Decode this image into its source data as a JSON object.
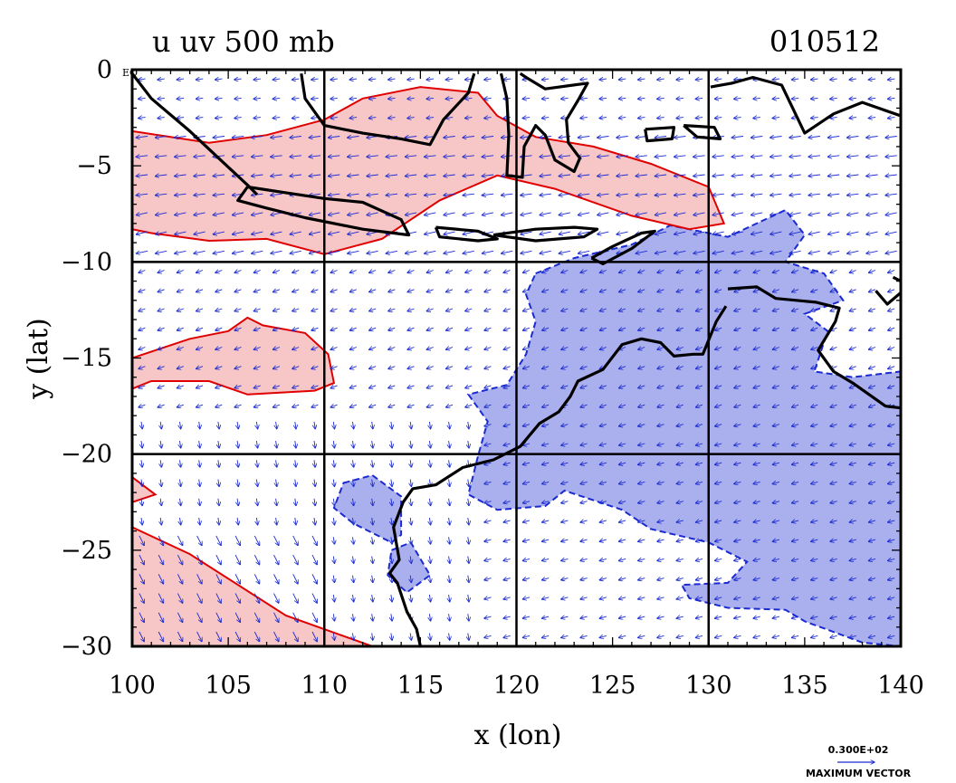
{
  "title": {
    "left": "u uv 500 mb",
    "right": "010512"
  },
  "axes": {
    "x": {
      "label": "x (lon)",
      "range": [
        100,
        140
      ],
      "ticks": [
        "100",
        "105",
        "110",
        "115",
        "120",
        "125",
        "130",
        "135",
        "140"
      ]
    },
    "y": {
      "label": "y (lat)",
      "range": [
        -30,
        0
      ],
      "ticks": [
        "-30",
        "-25",
        "-20",
        "-15",
        "-10",
        "-5",
        "0"
      ],
      "eq_label": "EQ"
    },
    "grid_lon": [
      110,
      120,
      130
    ],
    "grid_lat": [
      -10,
      -20
    ]
  },
  "legend": {
    "vector_value": "0.300E+02",
    "vector_label": "MAXIMUM VECTOR"
  },
  "colors": {
    "positive_fill": "#f7c6c6",
    "positive_line": "#e00000",
    "negative_fill": "#aab0ee",
    "negative_line": "#1a2ad0",
    "coast": "#000000",
    "vectors": "#1a2ad0"
  },
  "chart_data": {
    "type": "contour-vector-map",
    "title": "u uv 500 mb",
    "date": "010512",
    "xlabel": "x (lon)",
    "ylabel": "y (lat)",
    "xlim": [
      100,
      140
    ],
    "ylim": [
      -30,
      0
    ],
    "positive_regions_lonlat": [
      [
        [
          100,
          -3.2
        ],
        [
          104,
          -3.8
        ],
        [
          107,
          -3.4
        ],
        [
          110,
          -2.6
        ],
        [
          112,
          -1.5
        ],
        [
          115,
          -0.9
        ],
        [
          118,
          -1.2
        ],
        [
          119,
          -2.4
        ],
        [
          121,
          -3.5
        ],
        [
          124,
          -4.0
        ],
        [
          127,
          -4.9
        ],
        [
          130,
          -6.1
        ],
        [
          130.8,
          -8.0
        ],
        [
          129,
          -8.3
        ],
        [
          126,
          -7.6
        ],
        [
          122,
          -6.2
        ],
        [
          119,
          -5.5
        ],
        [
          116,
          -6.8
        ],
        [
          113,
          -8.8
        ],
        [
          110,
          -9.6
        ],
        [
          107,
          -8.8
        ],
        [
          104,
          -8.9
        ],
        [
          101,
          -8.5
        ],
        [
          100,
          -8.3
        ]
      ],
      [
        [
          100,
          -15.0
        ],
        [
          103,
          -14.0
        ],
        [
          105,
          -13.6
        ],
        [
          106,
          -12.9
        ],
        [
          106.8,
          -13.3
        ],
        [
          109,
          -13.7
        ],
        [
          110.2,
          -14.8
        ],
        [
          110.5,
          -16.3
        ],
        [
          109.5,
          -16.7
        ],
        [
          106,
          -16.9
        ],
        [
          104,
          -16.2
        ],
        [
          101,
          -16.2
        ],
        [
          100,
          -16.6
        ]
      ],
      [
        [
          100,
          -23.8
        ],
        [
          103,
          -25.2
        ],
        [
          108,
          -28.4
        ],
        [
          112.5,
          -30
        ],
        [
          100,
          -30
        ]
      ],
      [
        [
          100,
          -21.2
        ],
        [
          101.2,
          -22.1
        ],
        [
          100,
          -22.5
        ]
      ]
    ],
    "negative_regions_lonlat": [
      [
        [
          121,
          -10.6
        ],
        [
          123,
          -9.8
        ],
        [
          126,
          -9.1
        ],
        [
          128,
          -8.1
        ],
        [
          131,
          -8.7
        ],
        [
          134,
          -7.3
        ],
        [
          135,
          -8.6
        ],
        [
          134,
          -10.0
        ],
        [
          136,
          -10.6
        ],
        [
          137,
          -12.0
        ],
        [
          135,
          -12.7
        ],
        [
          136.2,
          -13.6
        ],
        [
          135.5,
          -15.7
        ],
        [
          137.5,
          -16.0
        ],
        [
          140,
          -15.7
        ],
        [
          140,
          -30
        ],
        [
          138,
          -29.8
        ],
        [
          135,
          -28.7
        ],
        [
          134,
          -28.1
        ],
        [
          131,
          -28.0
        ],
        [
          129,
          -27.5
        ],
        [
          128.6,
          -26.8
        ],
        [
          131,
          -26.7
        ],
        [
          132,
          -25.6
        ],
        [
          130,
          -24.6
        ],
        [
          127,
          -23.9
        ],
        [
          125.5,
          -22.9
        ],
        [
          122.5,
          -21.9
        ],
        [
          121.5,
          -22.7
        ],
        [
          119,
          -22.9
        ],
        [
          117.5,
          -22.1
        ],
        [
          118,
          -20.1
        ],
        [
          118.5,
          -18.3
        ],
        [
          117.5,
          -16.9
        ],
        [
          119.5,
          -16.4
        ],
        [
          120.5,
          -14.8
        ],
        [
          121,
          -13.1
        ],
        [
          120.5,
          -11.7
        ]
      ],
      [
        [
          111,
          -21.5
        ],
        [
          112.5,
          -21.1
        ],
        [
          114,
          -22.2
        ],
        [
          114,
          -24.2
        ],
        [
          113.5,
          -24.6
        ],
        [
          111.5,
          -23.6
        ],
        [
          110.5,
          -22.8
        ]
      ],
      [
        [
          113.5,
          -25.0
        ],
        [
          114.5,
          -24.6
        ],
        [
          115.5,
          -26.3
        ],
        [
          114.3,
          -27.2
        ],
        [
          113.3,
          -26.3
        ]
      ]
    ],
    "coastlines_lonlat": [
      [
        [
          100,
          -0.2
        ],
        [
          101,
          -1.5
        ],
        [
          103,
          -3.2
        ],
        [
          104.5,
          -4.6
        ],
        [
          106,
          -6.0
        ],
        [
          106.5,
          -6.5
        ]
      ],
      [
        [
          106,
          -6.1
        ],
        [
          108,
          -6.4
        ],
        [
          110,
          -6.7
        ],
        [
          112,
          -6.9
        ],
        [
          114,
          -7.8
        ],
        [
          114.4,
          -8.6
        ],
        [
          112,
          -8.3
        ],
        [
          109,
          -7.7
        ],
        [
          107,
          -7.2
        ],
        [
          105.5,
          -6.8
        ],
        [
          106,
          -6.1
        ]
      ],
      [
        [
          108.8,
          -0.2
        ],
        [
          109,
          -1.5
        ],
        [
          110,
          -2.9
        ],
        [
          112,
          -3.3
        ],
        [
          114,
          -3.6
        ],
        [
          115.5,
          -3.9
        ],
        [
          116.2,
          -2.6
        ],
        [
          117.5,
          -1.2
        ],
        [
          117.8,
          -0.2
        ]
      ],
      [
        [
          119.2,
          -0.2
        ],
        [
          119.5,
          -1.5
        ],
        [
          119.6,
          -3.4
        ],
        [
          119.5,
          -5.5
        ],
        [
          120.3,
          -5.6
        ],
        [
          120.4,
          -4.0
        ],
        [
          121,
          -2.9
        ],
        [
          121.5,
          -3.4
        ],
        [
          122,
          -4.7
        ],
        [
          123,
          -5.3
        ],
        [
          123.3,
          -4.6
        ],
        [
          122.7,
          -3.8
        ],
        [
          122.6,
          -2.6
        ],
        [
          123.2,
          -1.6
        ],
        [
          123.7,
          -0.7
        ],
        [
          121.5,
          -1.0
        ],
        [
          120.5,
          -0.4
        ],
        [
          120.2,
          -0.2
        ]
      ],
      [
        [
          126.7,
          -3.1
        ],
        [
          128.2,
          -3.0
        ],
        [
          128.1,
          -3.6
        ],
        [
          126.8,
          -3.7
        ],
        [
          126.7,
          -3.1
        ]
      ],
      [
        [
          128.7,
          -2.9
        ],
        [
          130.3,
          -3.0
        ],
        [
          130.6,
          -3.6
        ],
        [
          129.4,
          -3.5
        ],
        [
          128.7,
          -2.9
        ]
      ],
      [
        [
          115.8,
          -8.2
        ],
        [
          118,
          -8.4
        ],
        [
          119,
          -8.8
        ],
        [
          118,
          -8.9
        ],
        [
          116,
          -8.7
        ],
        [
          115.8,
          -8.2
        ]
      ],
      [
        [
          118.8,
          -8.6
        ],
        [
          121,
          -8.3
        ],
        [
          123,
          -8.2
        ],
        [
          124.2,
          -8.3
        ],
        [
          123.5,
          -8.7
        ],
        [
          121,
          -8.9
        ],
        [
          118.8,
          -8.6
        ]
      ],
      [
        [
          123.9,
          -9.8
        ],
        [
          125,
          -9.2
        ],
        [
          126.5,
          -8.5
        ],
        [
          127.2,
          -8.4
        ],
        [
          126,
          -9.3
        ],
        [
          124.5,
          -10.1
        ],
        [
          123.9,
          -9.8
        ]
      ],
      [
        [
          130.1,
          -0.9
        ],
        [
          131.2,
          -0.7
        ],
        [
          132.3,
          -0.4
        ],
        [
          133.8,
          -0.8
        ],
        [
          135,
          -3.3
        ],
        [
          136.5,
          -2.3
        ],
        [
          138,
          -1.7
        ],
        [
          140,
          -2.4
        ]
      ],
      [
        [
          131,
          -11.4
        ],
        [
          132.5,
          -11.3
        ],
        [
          133.5,
          -11.9
        ],
        [
          135.6,
          -12.1
        ],
        [
          136.8,
          -12.4
        ],
        [
          136.6,
          -13.1
        ],
        [
          135.7,
          -14.6
        ],
        [
          136.5,
          -15.7
        ],
        [
          137.5,
          -16.3
        ],
        [
          139.2,
          -17.5
        ],
        [
          140,
          -17.6
        ]
      ],
      [
        [
          140,
          -11.6
        ],
        [
          139.3,
          -12.2
        ],
        [
          138.7,
          -11.5
        ]
      ],
      [
        [
          139.6,
          -10.8
        ],
        [
          140,
          -11.0
        ]
      ],
      [
        [
          130.9,
          -12.3
        ],
        [
          130.4,
          -13.1
        ],
        [
          129.7,
          -14.8
        ],
        [
          129.2,
          -14.8
        ],
        [
          128.2,
          -14.9
        ],
        [
          127.5,
          -14.2
        ],
        [
          126.5,
          -14.0
        ],
        [
          125.5,
          -14.3
        ],
        [
          124.5,
          -15.6
        ],
        [
          123.2,
          -16.2
        ],
        [
          122.8,
          -17.0
        ],
        [
          122.2,
          -17.8
        ],
        [
          121.2,
          -18.4
        ],
        [
          120.2,
          -19.6
        ],
        [
          118.8,
          -20.3
        ],
        [
          117.2,
          -20.7
        ],
        [
          115.8,
          -21.6
        ],
        [
          114.6,
          -21.8
        ],
        [
          114.1,
          -22.5
        ],
        [
          113.6,
          -23.8
        ],
        [
          113.9,
          -25.5
        ],
        [
          113.4,
          -26.2
        ],
        [
          113.8,
          -26.7
        ],
        [
          114.3,
          -28.2
        ],
        [
          114.8,
          -29.1
        ],
        [
          115,
          -30
        ]
      ]
    ]
  }
}
